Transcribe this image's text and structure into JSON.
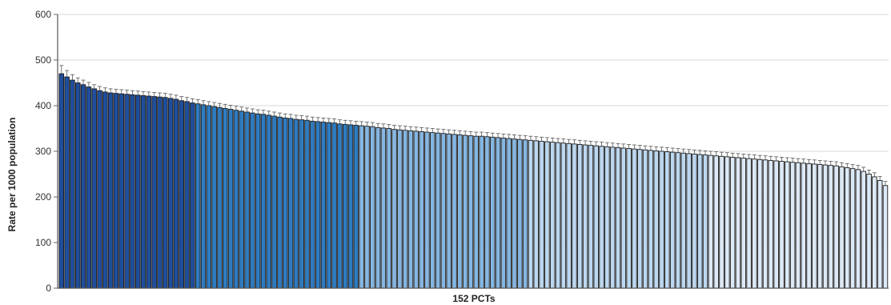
{
  "chart_data": {
    "type": "bar",
    "title": "",
    "xlabel": "152 PCTs",
    "ylabel": "Rate per 1000 population",
    "ylim": [
      0,
      600
    ],
    "yticks": [
      0,
      100,
      200,
      300,
      400,
      500,
      600
    ],
    "grid": true,
    "legend": "none",
    "error_bars": true,
    "error_bar_color": "#555555",
    "bar_outline_color": "#1a1a1a",
    "grid_color": "#d9d9d9",
    "color_bands": [
      {
        "count": 25,
        "color": "#1f4e9c"
      },
      {
        "count": 30,
        "color": "#2f7bc0"
      },
      {
        "count": 31,
        "color": "#86b6e0"
      },
      {
        "count": 33,
        "color": "#bcd7ef"
      },
      {
        "count": 33,
        "color": "#dde9f6"
      }
    ],
    "series": [
      {
        "values": [
          470,
          463,
          456,
          450,
          446,
          441,
          437,
          433,
          430,
          428,
          427,
          426,
          425,
          424,
          423,
          422,
          421,
          420,
          419,
          418,
          416,
          414,
          411,
          409,
          406,
          404,
          402,
          400,
          398,
          396,
          394,
          392,
          390,
          388,
          386,
          384,
          382,
          381,
          379,
          377,
          375,
          373,
          372,
          370,
          369,
          368,
          366,
          365,
          364,
          363,
          362,
          360,
          359,
          358,
          357,
          356,
          355,
          354,
          352,
          351,
          350,
          348,
          347,
          346,
          345,
          344,
          343,
          342,
          341,
          340,
          339,
          338,
          337,
          336,
          335,
          334,
          333,
          333,
          332,
          331,
          330,
          329,
          328,
          327,
          326,
          325,
          324,
          323,
          322,
          321,
          320,
          319,
          318,
          317,
          316,
          315,
          314,
          313,
          312,
          311,
          310,
          309,
          308,
          307,
          306,
          305,
          304,
          303,
          302,
          301,
          300,
          299,
          298,
          297,
          296,
          295,
          294,
          293,
          292,
          291,
          290,
          289,
          288,
          287,
          286,
          285,
          284,
          283,
          282,
          281,
          280,
          279,
          278,
          277,
          276,
          275,
          274,
          273,
          272,
          271,
          270,
          269,
          268,
          266,
          264,
          262,
          260,
          256,
          250,
          244,
          236,
          225
        ],
        "errors": [
          18,
          14,
          12,
          11,
          10,
          10,
          9,
          9,
          9,
          9,
          9,
          9,
          9,
          9,
          9,
          9,
          9,
          9,
          9,
          9,
          9,
          9,
          9,
          9,
          9,
          9,
          9,
          9,
          9,
          9,
          9,
          9,
          9,
          9,
          9,
          9,
          9,
          9,
          9,
          9,
          9,
          9,
          9,
          9,
          9,
          9,
          9,
          9,
          9,
          9,
          9,
          9,
          9,
          9,
          9,
          9,
          9,
          9,
          9,
          9,
          9,
          9,
          9,
          9,
          9,
          9,
          9,
          9,
          9,
          9,
          9,
          9,
          9,
          9,
          9,
          9,
          9,
          9,
          9,
          9,
          9,
          9,
          9,
          9,
          9,
          9,
          9,
          9,
          9,
          9,
          9,
          9,
          9,
          9,
          9,
          9,
          9,
          9,
          9,
          9,
          9,
          9,
          9,
          9,
          9,
          9,
          9,
          9,
          9,
          9,
          9,
          9,
          9,
          9,
          9,
          9,
          9,
          9,
          9,
          9,
          9,
          9,
          9,
          9,
          9,
          9,
          9,
          9,
          9,
          9,
          9,
          9,
          9,
          9,
          9,
          9,
          9,
          9,
          9,
          9,
          9,
          9,
          9,
          9,
          9,
          9,
          9,
          9,
          9,
          9,
          9,
          9
        ]
      }
    ]
  }
}
